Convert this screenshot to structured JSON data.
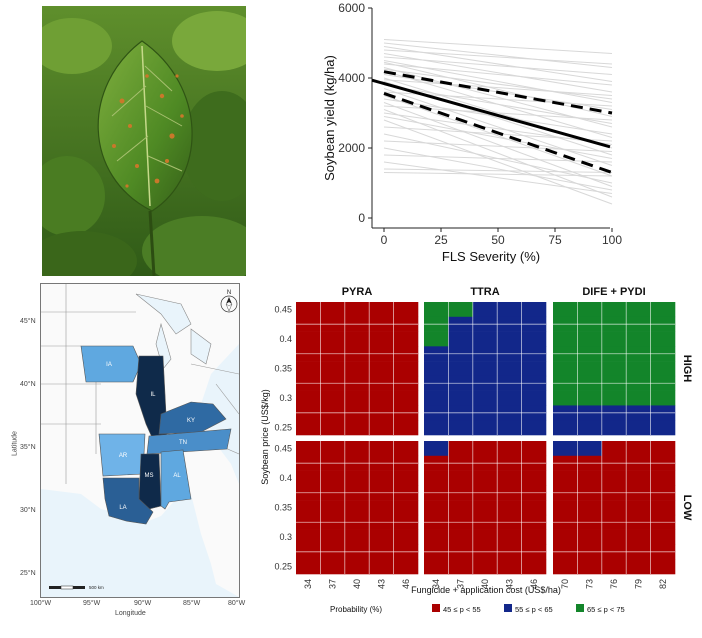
{
  "line_plot": {
    "xlabel": "FLS Severity (%)",
    "ylabel": "Soybean yield (kg/ha)",
    "x_ticks": [
      "0",
      "25",
      "50",
      "75",
      "100"
    ],
    "y_ticks": [
      "0",
      "2000",
      "4000",
      "6000"
    ]
  },
  "map": {
    "ylabel": "Latitude",
    "xlabel": "Longitude",
    "lat_ticks": [
      "45°N",
      "40°N",
      "35°N",
      "30°N",
      "25°N"
    ],
    "lon_ticks": [
      "100°W",
      "95°W",
      "90°W",
      "85°W",
      "80°W"
    ],
    "north_label": "N",
    "scale_label": "500 km",
    "states": [
      {
        "code": "IA",
        "color": "#5fa8e0"
      },
      {
        "code": "IL",
        "color": "#0f2a4a"
      },
      {
        "code": "KY",
        "color": "#2f6aa3"
      },
      {
        "code": "TN",
        "color": "#4a8ec9"
      },
      {
        "code": "AR",
        "color": "#6fb3e8"
      },
      {
        "code": "MS",
        "color": "#0f2a4a"
      },
      {
        "code": "AL",
        "color": "#5fa8e0"
      },
      {
        "code": "LA",
        "color": "#2a5f95"
      }
    ]
  },
  "heatmap": {
    "columns": [
      "PYRA",
      "TTRA",
      "DIFE + PYDI"
    ],
    "rows": [
      "HIGH",
      "LOW"
    ],
    "ylabel": "Soybean price (US$/kg)",
    "xlabel": "Fungicide + application cost (US$/ha)",
    "y_ticks": [
      "0.45",
      "0.4",
      "0.35",
      "0.3",
      "0.25"
    ],
    "x_ticks": [
      [
        "34",
        "37",
        "40",
        "43",
        "46"
      ],
      [
        "34",
        "37",
        "40",
        "43",
        "46"
      ],
      [
        "70",
        "73",
        "76",
        "79",
        "82"
      ]
    ],
    "legend_title": "Probability (%)",
    "legend": [
      {
        "label": "45 ≤ p < 55",
        "color": "#aa0000"
      },
      {
        "label": "55 ≤ p < 65",
        "color": "#12278a"
      },
      {
        "label": "65 ≤ p < 75",
        "color": "#13852a"
      }
    ]
  },
  "chart_data": [
    {
      "type": "line",
      "xlabel": "FLS Severity (%)",
      "ylabel": "Soybean yield (kg/ha)",
      "xlim": [
        0,
        100
      ],
      "ylim": [
        0,
        6000
      ],
      "series": [
        {
          "x": [
            0,
            100
          ],
          "y": [
            3880,
            2120
          ]
        },
        {
          "x": [
            0,
            100
          ],
          "y": [
            4180,
            3000
          ]
        },
        {
          "x": [
            0,
            100
          ],
          "y": [
            3560,
            1300
          ]
        }
      ],
      "background_lines": [
        [
          5100,
          4700
        ],
        [
          5000,
          4300
        ],
        [
          4900,
          3900
        ],
        [
          4800,
          4400
        ],
        [
          4700,
          3600
        ],
        [
          4600,
          4100
        ],
        [
          4500,
          3300
        ],
        [
          4450,
          2900
        ],
        [
          4400,
          3800
        ],
        [
          4300,
          2600
        ],
        [
          4250,
          3400
        ],
        [
          4200,
          2300
        ],
        [
          4100,
          3100
        ],
        [
          4000,
          2000
        ],
        [
          3950,
          3500
        ],
        [
          3900,
          1800
        ],
        [
          3800,
          2700
        ],
        [
          3700,
          1500
        ],
        [
          3600,
          3200
        ],
        [
          3500,
          1200
        ],
        [
          3400,
          2400
        ],
        [
          3300,
          900
        ],
        [
          3200,
          2800
        ],
        [
          3100,
          600
        ],
        [
          3000,
          2100
        ],
        [
          2900,
          1700
        ],
        [
          2800,
          400
        ],
        [
          2600,
          2200
        ],
        [
          2400,
          1000
        ],
        [
          2200,
          1900
        ],
        [
          2000,
          800
        ],
        [
          1800,
          1600
        ],
        [
          1600,
          700
        ],
        [
          1400,
          1300
        ],
        [
          1300,
          1200
        ]
      ]
    },
    {
      "type": "heatmap",
      "x_categories": [
        [
          "34",
          "37",
          "40",
          "43",
          "46"
        ],
        [
          "34",
          "37",
          "40",
          "43",
          "46"
        ],
        [
          "70",
          "73",
          "76",
          "79",
          "82"
        ]
      ],
      "y_categories": [
        "0.45",
        "0.425",
        "0.4",
        "0.375",
        "0.35",
        "0.325",
        "0.3",
        "0.275",
        "0.25"
      ],
      "panels": {
        "HIGH": [
          [
            "RRRRR",
            "RRRRR",
            "RRRRR",
            "RRRRR",
            "RRRRR",
            "RRRRR",
            "RRRRR",
            "RRRRR",
            "RRRRR"
          ],
          [
            "GGBBB",
            "GBBBB",
            "GBBBB",
            "BBBBB",
            "BBBBB",
            "BBBBB",
            "BBBBB",
            "BBBBB",
            "BBBBB"
          ],
          [
            "GGGGG",
            "GGGGG",
            "GGGGG",
            "GGGGG",
            "GGGGG",
            "GGGGG",
            "GGGGG",
            "BBBBB",
            "BBBBB"
          ]
        ],
        "LOW": [
          [
            "RRRRR",
            "RRRRR",
            "RRRRR",
            "RRRRR",
            "RRRRR",
            "RRRRR",
            "RRRRR",
            "RRRRR",
            "RRRRR"
          ],
          [
            "BRRRR",
            "RRRRR",
            "RRRRR",
            "RRRRR",
            "RRRRR",
            "RRRRR",
            "RRRRR",
            "RRRRR",
            "RRRRR"
          ],
          [
            "BBRRR",
            "RRRRR",
            "RRRRR",
            "RRRRR",
            "RRRRR",
            "RRRRR",
            "RRRRR",
            "RRRRR",
            "RRRRR"
          ]
        ]
      },
      "color_key": {
        "R": "45 ≤ p < 55",
        "B": "55 ≤ p < 65",
        "G": "65 ≤ p < 75"
      }
    }
  ]
}
